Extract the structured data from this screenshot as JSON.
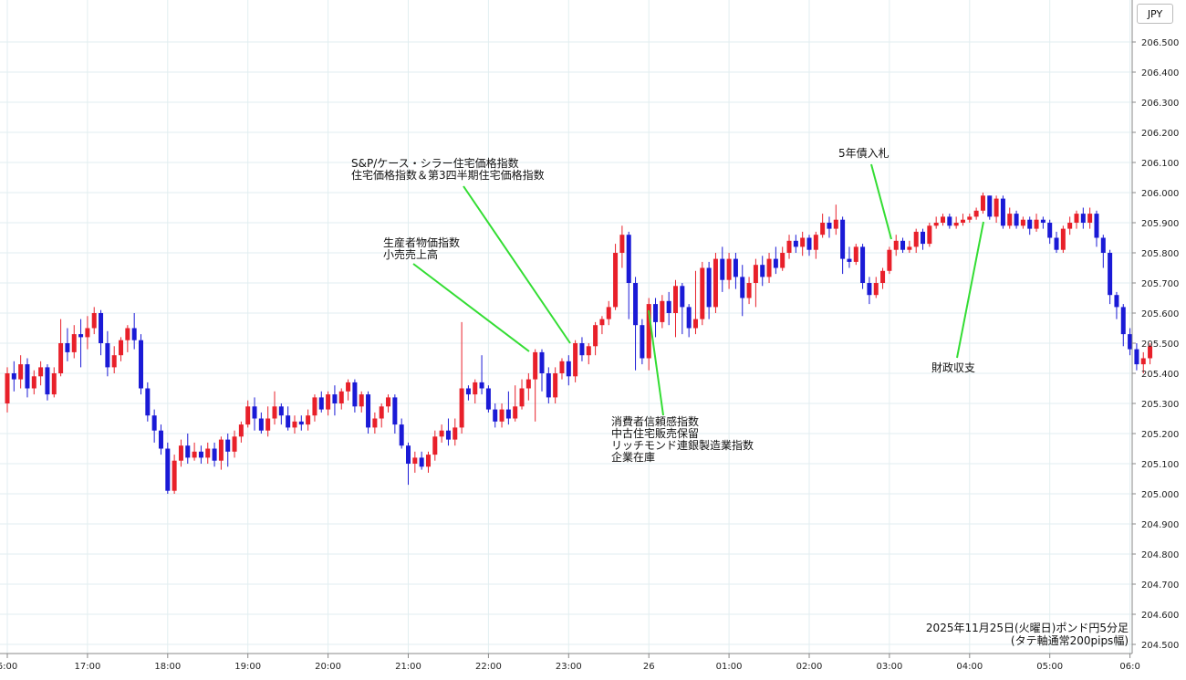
{
  "currency": "JPY",
  "chart_data": {
    "type": "candlestick",
    "instrument": "ポンド円",
    "timeframe": "5分足",
    "colors": {
      "up": "#e8202a",
      "down": "#1a1ad6",
      "annotation_line": "#33dd33",
      "grid": "#e2eef0"
    },
    "ylim": [
      204.5,
      206.6
    ],
    "y_ticks": [
      "206.500",
      "206.400",
      "206.300",
      "206.200",
      "206.100",
      "206.000",
      "205.900",
      "205.800",
      "205.700",
      "205.600",
      "205.500",
      "205.400",
      "205.300",
      "205.200",
      "205.100",
      "205.000",
      "204.900",
      "204.800",
      "204.700",
      "204.600",
      "204.500"
    ],
    "x_ticks": [
      {
        "label": "6:00",
        "bar": 0
      },
      {
        "label": "17:00",
        "bar": 12
      },
      {
        "label": "18:00",
        "bar": 24
      },
      {
        "label": "19:00",
        "bar": 36
      },
      {
        "label": "20:00",
        "bar": 48
      },
      {
        "label": "21:00",
        "bar": 60
      },
      {
        "label": "22:00",
        "bar": 72
      },
      {
        "label": "23:00",
        "bar": 84
      },
      {
        "label": "26",
        "bar": 96
      },
      {
        "label": "01:00",
        "bar": 108
      },
      {
        "label": "02:00",
        "bar": 120
      },
      {
        "label": "03:00",
        "bar": 132
      },
      {
        "label": "04:00",
        "bar": 144
      },
      {
        "label": "05:00",
        "bar": 156
      },
      {
        "label": "06:0",
        "bar": 168
      }
    ],
    "candles": [
      [
        205.3,
        205.4,
        205.27,
        205.42
      ],
      [
        205.4,
        205.38,
        205.34,
        205.44
      ],
      [
        205.38,
        205.43,
        205.35,
        205.46
      ],
      [
        205.43,
        205.35,
        205.32,
        205.45
      ],
      [
        205.35,
        205.39,
        205.33,
        205.41
      ],
      [
        205.39,
        205.42,
        205.36,
        205.44
      ],
      [
        205.42,
        205.33,
        205.31,
        205.43
      ],
      [
        205.33,
        205.4,
        205.32,
        205.42
      ],
      [
        205.4,
        205.5,
        205.39,
        205.58
      ],
      [
        205.5,
        205.47,
        205.44,
        205.55
      ],
      [
        205.47,
        205.53,
        205.45,
        205.56
      ],
      [
        205.53,
        205.52,
        205.42,
        205.58
      ],
      [
        205.52,
        205.55,
        205.48,
        205.59
      ],
      [
        205.55,
        205.6,
        205.53,
        205.62
      ],
      [
        205.6,
        205.5,
        205.46,
        205.61
      ],
      [
        205.5,
        205.42,
        205.39,
        205.54
      ],
      [
        205.42,
        205.46,
        205.4,
        205.49
      ],
      [
        205.46,
        205.51,
        205.44,
        205.52
      ],
      [
        205.51,
        205.55,
        205.47,
        205.56
      ],
      [
        205.55,
        205.51,
        205.48,
        205.6
      ],
      [
        205.51,
        205.35,
        205.33,
        205.53
      ],
      [
        205.35,
        205.26,
        205.24,
        205.37
      ],
      [
        205.26,
        205.21,
        205.17,
        205.28
      ],
      [
        205.21,
        205.15,
        205.13,
        205.23
      ],
      [
        205.15,
        205.01,
        205.0,
        205.17
      ],
      [
        205.01,
        205.11,
        205.0,
        205.13
      ],
      [
        205.11,
        205.16,
        205.09,
        205.18
      ],
      [
        205.16,
        205.12,
        205.1,
        205.2
      ],
      [
        205.12,
        205.14,
        205.11,
        205.17
      ],
      [
        205.14,
        205.12,
        205.1,
        205.16
      ],
      [
        205.12,
        205.15,
        205.1,
        205.17
      ],
      [
        205.15,
        205.11,
        205.09,
        205.17
      ],
      [
        205.11,
        205.18,
        205.08,
        205.19
      ],
      [
        205.18,
        205.14,
        205.09,
        205.2
      ],
      [
        205.14,
        205.19,
        205.12,
        205.21
      ],
      [
        205.19,
        205.23,
        205.17,
        205.24
      ],
      [
        205.23,
        205.29,
        205.22,
        205.31
      ],
      [
        205.29,
        205.25,
        205.21,
        205.32
      ],
      [
        205.25,
        205.21,
        205.2,
        205.27
      ],
      [
        205.21,
        205.25,
        205.19,
        205.29
      ],
      [
        205.25,
        205.29,
        205.23,
        205.34
      ],
      [
        205.29,
        205.26,
        205.23,
        205.3
      ],
      [
        205.26,
        205.22,
        205.21,
        205.29
      ],
      [
        205.22,
        205.24,
        205.2,
        205.26
      ],
      [
        205.24,
        205.23,
        205.21,
        205.26
      ],
      [
        205.23,
        205.26,
        205.21,
        205.28
      ],
      [
        205.26,
        205.32,
        205.24,
        205.33
      ],
      [
        205.32,
        205.28,
        205.27,
        205.34
      ],
      [
        205.28,
        205.33,
        205.26,
        205.34
      ],
      [
        205.33,
        205.3,
        205.26,
        205.36
      ],
      [
        205.3,
        205.34,
        205.28,
        205.35
      ],
      [
        205.34,
        205.37,
        205.31,
        205.38
      ],
      [
        205.37,
        205.29,
        205.27,
        205.38
      ],
      [
        205.29,
        205.33,
        205.27,
        205.34
      ],
      [
        205.33,
        205.22,
        205.2,
        205.34
      ],
      [
        205.22,
        205.25,
        205.2,
        205.27
      ],
      [
        205.25,
        205.29,
        205.22,
        205.3
      ],
      [
        205.29,
        205.32,
        205.27,
        205.33
      ],
      [
        205.32,
        205.23,
        205.2,
        205.33
      ],
      [
        205.23,
        205.16,
        205.15,
        205.25
      ],
      [
        205.16,
        205.1,
        205.03,
        205.17
      ],
      [
        205.1,
        205.12,
        205.07,
        205.14
      ],
      [
        205.12,
        205.09,
        205.08,
        205.14
      ],
      [
        205.09,
        205.13,
        205.07,
        205.14
      ],
      [
        205.13,
        205.19,
        205.11,
        205.21
      ],
      [
        205.19,
        205.21,
        205.17,
        205.23
      ],
      [
        205.21,
        205.18,
        205.16,
        205.25
      ],
      [
        205.18,
        205.22,
        205.16,
        205.25
      ],
      [
        205.22,
        205.35,
        205.2,
        205.57
      ],
      [
        205.35,
        205.33,
        205.31,
        205.36
      ],
      [
        205.33,
        205.37,
        205.3,
        205.38
      ],
      [
        205.37,
        205.35,
        205.33,
        205.46
      ],
      [
        205.35,
        205.28,
        205.27,
        205.36
      ],
      [
        205.28,
        205.24,
        205.22,
        205.3
      ],
      [
        205.24,
        205.28,
        205.22,
        205.3
      ],
      [
        205.28,
        205.25,
        205.23,
        205.34
      ],
      [
        205.25,
        205.29,
        205.24,
        205.36
      ],
      [
        205.29,
        205.35,
        205.28,
        205.38
      ],
      [
        205.35,
        205.38,
        205.31,
        205.4
      ],
      [
        205.38,
        205.47,
        205.24,
        205.48
      ],
      [
        205.47,
        205.4,
        205.34,
        205.48
      ],
      [
        205.4,
        205.32,
        205.3,
        205.42
      ],
      [
        205.32,
        205.4,
        205.3,
        205.42
      ],
      [
        205.4,
        205.44,
        205.38,
        205.45
      ],
      [
        205.44,
        205.39,
        205.36,
        205.46
      ],
      [
        205.39,
        205.5,
        205.37,
        205.51
      ],
      [
        205.5,
        205.46,
        205.44,
        205.52
      ],
      [
        205.46,
        205.49,
        205.43,
        205.5
      ],
      [
        205.49,
        205.56,
        205.46,
        205.57
      ],
      [
        205.56,
        205.58,
        205.53,
        205.59
      ],
      [
        205.58,
        205.62,
        205.56,
        205.64
      ],
      [
        205.62,
        205.8,
        205.61,
        205.83
      ],
      [
        205.8,
        205.86,
        205.75,
        205.89
      ],
      [
        205.86,
        205.7,
        205.58,
        205.87
      ],
      [
        205.7,
        205.56,
        205.41,
        205.72
      ],
      [
        205.56,
        205.45,
        205.43,
        205.58
      ],
      [
        205.45,
        205.63,
        205.41,
        205.65
      ],
      [
        205.63,
        205.57,
        205.52,
        205.65
      ],
      [
        205.57,
        205.64,
        205.55,
        205.66
      ],
      [
        205.64,
        205.6,
        205.56,
        205.67
      ],
      [
        205.6,
        205.69,
        205.52,
        205.71
      ],
      [
        205.69,
        205.62,
        205.53,
        205.7
      ],
      [
        205.62,
        205.55,
        205.52,
        205.63
      ],
      [
        205.55,
        205.58,
        205.53,
        205.74
      ],
      [
        205.58,
        205.75,
        205.56,
        205.77
      ],
      [
        205.75,
        205.62,
        205.58,
        205.77
      ],
      [
        205.62,
        205.78,
        205.6,
        205.8
      ],
      [
        205.78,
        205.71,
        205.67,
        205.82
      ],
      [
        205.71,
        205.78,
        205.68,
        205.8
      ],
      [
        205.78,
        205.72,
        205.68,
        205.8
      ],
      [
        205.72,
        205.65,
        205.59,
        205.76
      ],
      [
        205.65,
        205.7,
        205.63,
        205.72
      ],
      [
        205.7,
        205.76,
        205.62,
        205.78
      ],
      [
        205.76,
        205.72,
        205.69,
        205.79
      ],
      [
        205.72,
        205.78,
        205.7,
        205.8
      ],
      [
        205.78,
        205.75,
        205.73,
        205.82
      ],
      [
        205.75,
        205.8,
        205.74,
        205.82
      ],
      [
        205.8,
        205.84,
        205.78,
        205.86
      ],
      [
        205.84,
        205.82,
        205.8,
        205.86
      ],
      [
        205.82,
        205.85,
        205.79,
        205.87
      ],
      [
        205.85,
        205.81,
        205.79,
        205.86
      ],
      [
        205.81,
        205.86,
        205.78,
        205.87
      ],
      [
        205.86,
        205.9,
        205.85,
        205.93
      ],
      [
        205.9,
        205.88,
        205.85,
        205.92
      ],
      [
        205.88,
        205.91,
        205.86,
        205.96
      ],
      [
        205.91,
        205.78,
        205.73,
        205.92
      ],
      [
        205.78,
        205.77,
        205.75,
        205.82
      ],
      [
        205.77,
        205.82,
        205.76,
        205.83
      ],
      [
        205.82,
        205.7,
        205.68,
        205.83
      ],
      [
        205.7,
        205.66,
        205.63,
        205.72
      ],
      [
        205.66,
        205.7,
        205.65,
        205.72
      ],
      [
        205.7,
        205.74,
        205.68,
        205.75
      ],
      [
        205.74,
        205.81,
        205.73,
        205.82
      ],
      [
        205.81,
        205.84,
        205.79,
        205.86
      ],
      [
        205.84,
        205.81,
        205.8,
        205.85
      ],
      [
        205.81,
        205.82,
        205.8,
        205.84
      ],
      [
        205.82,
        205.87,
        205.8,
        205.88
      ],
      [
        205.87,
        205.83,
        205.81,
        205.88
      ],
      [
        205.83,
        205.89,
        205.82,
        205.9
      ],
      [
        205.89,
        205.9,
        205.88,
        205.92
      ],
      [
        205.9,
        205.92,
        205.89,
        205.93
      ],
      [
        205.92,
        205.89,
        205.88,
        205.93
      ],
      [
        205.89,
        205.9,
        205.88,
        205.92
      ],
      [
        205.9,
        205.91,
        205.89,
        205.93
      ],
      [
        205.91,
        205.92,
        205.9,
        205.93
      ],
      [
        205.92,
        205.94,
        205.91,
        205.95
      ],
      [
        205.94,
        205.99,
        205.93,
        206.0
      ],
      [
        205.99,
        205.92,
        205.91,
        205.99
      ],
      [
        205.92,
        205.98,
        205.9,
        205.99
      ],
      [
        205.98,
        205.89,
        205.88,
        205.99
      ],
      [
        205.89,
        205.93,
        205.88,
        205.95
      ],
      [
        205.93,
        205.89,
        205.88,
        205.94
      ],
      [
        205.89,
        205.91,
        205.88,
        205.92
      ],
      [
        205.91,
        205.88,
        205.86,
        205.92
      ],
      [
        205.88,
        205.91,
        205.87,
        205.93
      ],
      [
        205.91,
        205.9,
        205.88,
        205.92
      ],
      [
        205.9,
        205.85,
        205.83,
        205.91
      ],
      [
        205.85,
        205.81,
        205.8,
        205.87
      ],
      [
        205.81,
        205.88,
        205.8,
        205.89
      ],
      [
        205.88,
        205.9,
        205.86,
        205.92
      ],
      [
        205.9,
        205.93,
        205.88,
        205.94
      ],
      [
        205.93,
        205.9,
        205.88,
        205.95
      ],
      [
        205.9,
        205.93,
        205.88,
        205.95
      ],
      [
        205.93,
        205.85,
        205.82,
        205.94
      ],
      [
        205.85,
        205.8,
        205.75,
        205.86
      ],
      [
        205.8,
        205.66,
        205.63,
        205.81
      ],
      [
        205.66,
        205.62,
        205.58,
        205.67
      ],
      [
        205.62,
        205.53,
        205.49,
        205.63
      ],
      [
        205.53,
        205.48,
        205.46,
        205.55
      ],
      [
        205.48,
        205.43,
        205.41,
        205.5
      ],
      [
        205.43,
        205.45,
        205.4,
        205.47
      ],
      [
        205.45,
        205.49,
        205.43,
        205.5
      ]
    ],
    "annotations": [
      {
        "lines": [
          "生産者物価指数",
          "小売売上高"
        ]
      },
      {
        "lines": [
          "S&P/ケース・シラー住宅価格指数",
          "住宅価格指数＆第3四半期住宅価格指数"
        ]
      },
      {
        "lines": [
          "消費者信頼感指数",
          "中古住宅販売保留",
          "リッチモンド連銀製造業指数",
          "企業在庫"
        ]
      },
      {
        "lines": [
          "5年債入札"
        ]
      },
      {
        "lines": [
          "財政収支"
        ]
      }
    ],
    "caption": [
      "2025年11月25日(火曜日)ポンド円5分足",
      "(タテ軸通常200pips幅)"
    ]
  }
}
